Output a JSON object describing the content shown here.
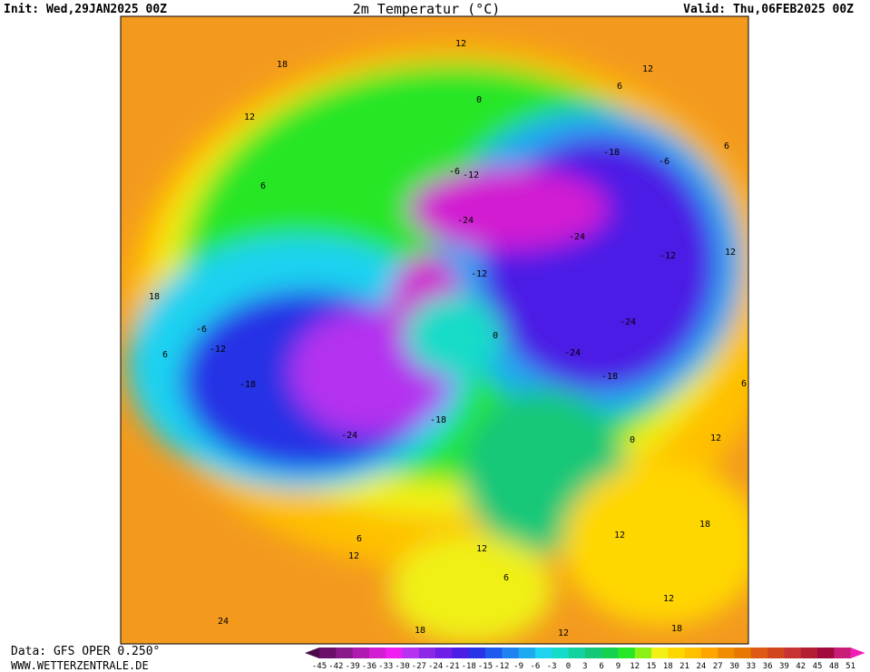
{
  "header": {
    "init": "Init: Wed,29JAN2025 00Z",
    "title": "2m Temperatur (°C)",
    "valid": "Valid: Thu,06FEB2025 00Z"
  },
  "footer": {
    "source": "Data: GFS OPER 0.250°",
    "site": "WWW.WETTERZENTRALE.DE"
  },
  "colorbar": {
    "labels": [
      -45,
      -42,
      -39,
      -36,
      -33,
      -30,
      -27,
      -24,
      -21,
      -18,
      -15,
      -12,
      -9,
      -6,
      -3,
      0,
      3,
      6,
      9,
      12,
      15,
      18,
      21,
      24,
      27,
      30,
      33,
      36,
      39,
      42,
      45,
      48,
      51
    ],
    "colors": [
      "#4a0a4a",
      "#6b0f6b",
      "#8a1a8a",
      "#b01ab0",
      "#d21ed2",
      "#f01ef0",
      "#b432f0",
      "#8c28e6",
      "#6e1ee6",
      "#4b1ee6",
      "#2832e6",
      "#1e5af0",
      "#1e82f0",
      "#1eaaf0",
      "#1ed2f0",
      "#14dcc8",
      "#14d2a0",
      "#14c878",
      "#14d250",
      "#28e628",
      "#8cf014",
      "#f0f014",
      "#ffd700",
      "#ffc000",
      "#ffa500",
      "#f08c00",
      "#e67800",
      "#dc5a14",
      "#d2461e",
      "#c83232",
      "#b41e32",
      "#a00a3c",
      "#c81e78",
      "#f01eb4"
    ]
  },
  "map": {
    "contour_labels": [
      "12",
      "18",
      "12",
      "12",
      "6",
      "0",
      "6",
      "-6",
      "-12",
      "-18",
      "-6",
      "6",
      "-24",
      "-24",
      "-12",
      "12",
      "18",
      "-6",
      "-12",
      "6",
      "-18",
      "-24",
      "-18",
      "-12",
      "-24",
      "-24",
      "-18",
      "6",
      "0",
      "12",
      "6",
      "12",
      "12",
      "12",
      "18",
      "6",
      "12",
      "24",
      "18",
      "12",
      "18",
      "0"
    ]
  }
}
